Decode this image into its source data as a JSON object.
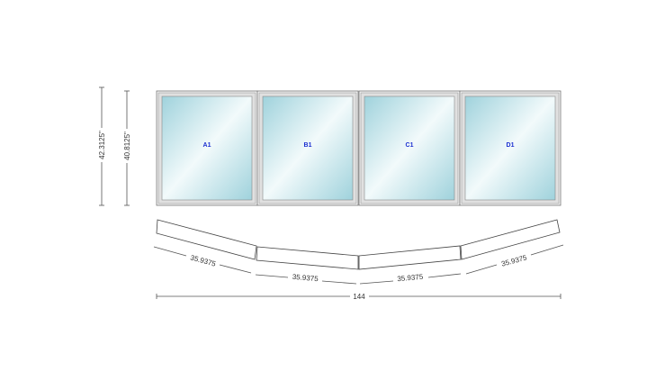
{
  "elevation": {
    "overall_height": "42.3125\"",
    "frame_height": "40.8125\"",
    "panes": [
      {
        "label": "A1"
      },
      {
        "label": "B1"
      },
      {
        "label": "C1"
      },
      {
        "label": "D1"
      }
    ]
  },
  "plan": {
    "segment_widths": [
      "35.9375",
      "35.9375",
      "35.9375",
      "35.9375"
    ],
    "total_width": "144"
  },
  "colors": {
    "glass": "#a8d8e0",
    "frame": "#d9d9d9",
    "label": "#1a2fd0"
  }
}
